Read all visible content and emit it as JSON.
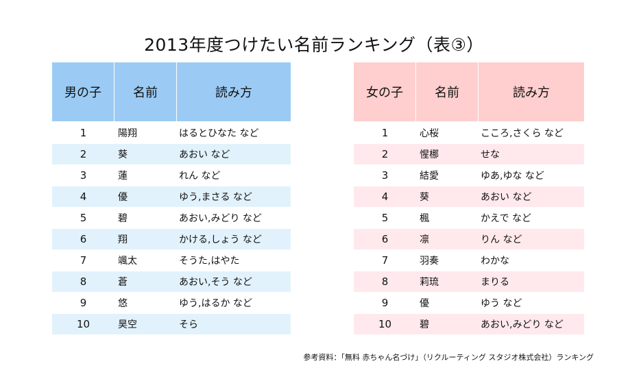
{
  "title": "2013年度つけたい名前ランキング（表③）",
  "boys": {
    "headers": [
      "男の子",
      "名前",
      "読み方"
    ],
    "rows": [
      {
        "rank": "1",
        "name": "陽翔",
        "reading": "はるとひなた など"
      },
      {
        "rank": "2",
        "name": "葵",
        "reading": "あおい など"
      },
      {
        "rank": "3",
        "name": "蓮",
        "reading": "れん など"
      },
      {
        "rank": "4",
        "name": "優",
        "reading": "ゆう,まさる など"
      },
      {
        "rank": "5",
        "name": "碧",
        "reading": "あおい,みどり など"
      },
      {
        "rank": "6",
        "name": "翔",
        "reading": "かける,しょう など"
      },
      {
        "rank": "7",
        "name": "颯太",
        "reading": "そうた,はやた"
      },
      {
        "rank": "8",
        "name": "蒼",
        "reading": "あおい,そう など"
      },
      {
        "rank": "9",
        "name": "悠",
        "reading": "ゆう,はるか など"
      },
      {
        "rank": "10",
        "name": "昊空",
        "reading": "そら"
      }
    ]
  },
  "girls": {
    "headers": [
      "女の子",
      "名前",
      "読み方"
    ],
    "rows": [
      {
        "rank": "1",
        "name": "心桜",
        "reading": "こころ,さくら など"
      },
      {
        "rank": "2",
        "name": "惺梛",
        "reading": "せな"
      },
      {
        "rank": "3",
        "name": "結愛",
        "reading": "ゆあ,ゆな など"
      },
      {
        "rank": "4",
        "name": "葵",
        "reading": "あおい など"
      },
      {
        "rank": "5",
        "name": "楓",
        "reading": "かえで など"
      },
      {
        "rank": "6",
        "name": "凛",
        "reading": "りん など"
      },
      {
        "rank": "7",
        "name": "羽奏",
        "reading": "わかな"
      },
      {
        "rank": "8",
        "name": "莉琉",
        "reading": "まりる"
      },
      {
        "rank": "9",
        "name": "優",
        "reading": "ゆう など"
      },
      {
        "rank": "10",
        "name": "碧",
        "reading": "あおい,みどり など"
      }
    ]
  },
  "source": "参考資料：「無料 赤ちゃん名づけ」（リクルーティング スタジオ株式会社）ランキング",
  "colors": {
    "boys_header": "#9bcbf4",
    "boys_stripe": "#e2f2fc",
    "girls_header": "#ffcece",
    "girls_stripe": "#ffe9ec"
  }
}
